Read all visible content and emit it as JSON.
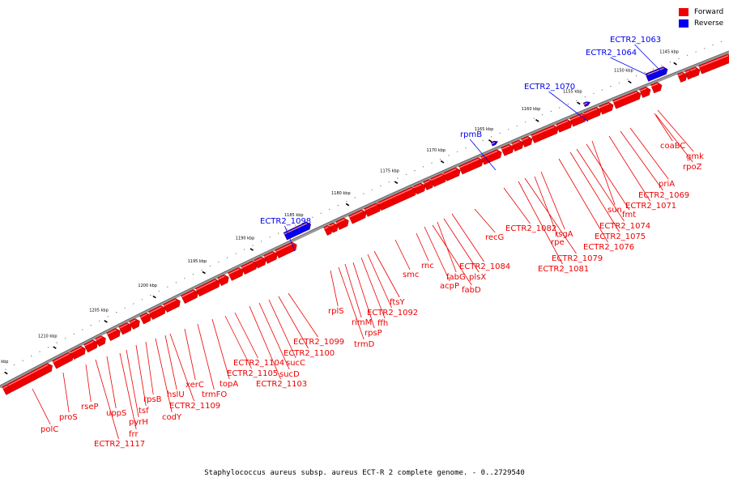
{
  "caption": "Staphylococcus aureus subsp. aureus ECT-R 2 complete genome. - 0..2729540",
  "legend": [
    {
      "label": "Forward",
      "color": "#ee0000"
    },
    {
      "label": "Reverse",
      "color": "#0000ee"
    }
  ],
  "colors": {
    "forward": "#ee0000",
    "reverse": "#0000ee",
    "backbone": "#888888"
  },
  "ticks": [
    "1145 kbp",
    "1150 kbp",
    "1155 kbp",
    "1160 kbp",
    "1165 kbp",
    "1170 kbp",
    "1175 kbp",
    "1180 kbp",
    "1185 kbp",
    "1190 kbp",
    "1195 kbp",
    "1200 kbp",
    "1205 kbp",
    "1210 kbp",
    "1215 kbp"
  ],
  "genes": [
    {
      "label": "ECTR2_1063",
      "strand": "reverse"
    },
    {
      "label": "ECTR2_1064",
      "strand": "reverse"
    },
    {
      "label": "coaBC",
      "strand": "forward"
    },
    {
      "label": "gmk",
      "strand": "forward"
    },
    {
      "label": "rpoZ",
      "strand": "forward"
    },
    {
      "label": "ECTR2_1070",
      "strand": "reverse"
    },
    {
      "label": "priA",
      "strand": "forward"
    },
    {
      "label": "ECTR2_1069",
      "strand": "forward"
    },
    {
      "label": "ECTR2_1071",
      "strand": "forward"
    },
    {
      "label": "sun",
      "strand": "forward"
    },
    {
      "label": "fmt",
      "strand": "forward"
    },
    {
      "label": "ECTR2_1074",
      "strand": "forward"
    },
    {
      "label": "ECTR2_1075",
      "strand": "forward"
    },
    {
      "label": "ECTR2_1076",
      "strand": "forward"
    },
    {
      "label": "rpmB",
      "strand": "reverse"
    },
    {
      "label": "rsgA",
      "strand": "forward"
    },
    {
      "label": "rpe",
      "strand": "forward"
    },
    {
      "label": "ECTR2_1079",
      "strand": "forward"
    },
    {
      "label": "ECTR2_1081",
      "strand": "forward"
    },
    {
      "label": "ECTR2_1082",
      "strand": "forward"
    },
    {
      "label": "recG",
      "strand": "forward"
    },
    {
      "label": "ECTR2_1084",
      "strand": "forward"
    },
    {
      "label": "plsX",
      "strand": "forward"
    },
    {
      "label": "fabG",
      "strand": "forward"
    },
    {
      "label": "fabD",
      "strand": "forward"
    },
    {
      "label": "acpP",
      "strand": "forward"
    },
    {
      "label": "rnc",
      "strand": "forward"
    },
    {
      "label": "smc",
      "strand": "forward"
    },
    {
      "label": "ftsY",
      "strand": "forward"
    },
    {
      "label": "ECTR2_1092",
      "strand": "forward"
    },
    {
      "label": "ffh",
      "strand": "forward"
    },
    {
      "label": "rpsP",
      "strand": "forward"
    },
    {
      "label": "rimM",
      "strand": "forward"
    },
    {
      "label": "trmD",
      "strand": "forward"
    },
    {
      "label": "rplS",
      "strand": "forward"
    },
    {
      "label": "ECTR2_1098",
      "strand": "reverse"
    },
    {
      "label": "ECTR2_1099",
      "strand": "forward"
    },
    {
      "label": "ECTR2_1100",
      "strand": "forward"
    },
    {
      "label": "sucC",
      "strand": "forward"
    },
    {
      "label": "sucD",
      "strand": "forward"
    },
    {
      "label": "ECTR2_1103",
      "strand": "forward"
    },
    {
      "label": "ECTR2_1104",
      "strand": "forward"
    },
    {
      "label": "ECTR2_1105",
      "strand": "forward"
    },
    {
      "label": "topA",
      "strand": "forward"
    },
    {
      "label": "trmFO",
      "strand": "forward"
    },
    {
      "label": "xerC",
      "strand": "forward"
    },
    {
      "label": "ECTR2_1109",
      "strand": "forward"
    },
    {
      "label": "hslU",
      "strand": "forward"
    },
    {
      "label": "codY",
      "strand": "forward"
    },
    {
      "label": "rpsB",
      "strand": "forward"
    },
    {
      "label": "tsf",
      "strand": "forward"
    },
    {
      "label": "pyrH",
      "strand": "forward"
    },
    {
      "label": "frr",
      "strand": "forward"
    },
    {
      "label": "uppS",
      "strand": "forward"
    },
    {
      "label": "ECTR2_1117",
      "strand": "forward"
    },
    {
      "label": "rseP",
      "strand": "forward"
    },
    {
      "label": "proS",
      "strand": "forward"
    },
    {
      "label": "polC",
      "strand": "forward"
    }
  ]
}
